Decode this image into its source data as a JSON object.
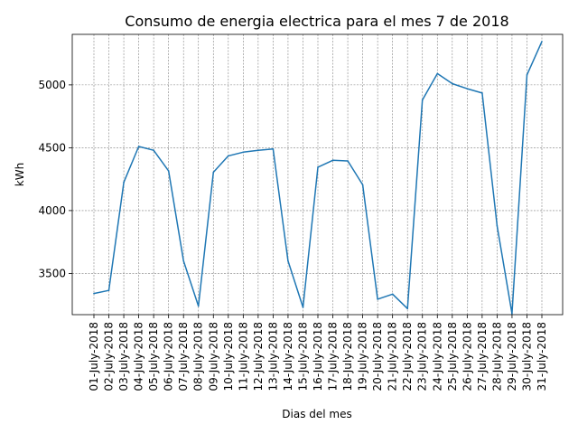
{
  "chart_data": {
    "type": "line",
    "title": "Consumo de energia electrica para el mes 7 de 2018",
    "xlabel": "Dias del mes",
    "ylabel": "kWh",
    "categories": [
      "01-July-2018",
      "02-July-2018",
      "03-July-2018",
      "04-July-2018",
      "05-July-2018",
      "06-July-2018",
      "07-July-2018",
      "08-July-2018",
      "09-July-2018",
      "10-July-2018",
      "11-July-2018",
      "12-July-2018",
      "13-July-2018",
      "14-July-2018",
      "15-July-2018",
      "16-July-2018",
      "17-July-2018",
      "18-July-2018",
      "19-July-2018",
      "20-July-2018",
      "21-July-2018",
      "22-July-2018",
      "23-July-2018",
      "24-July-2018",
      "25-July-2018",
      "26-July-2018",
      "27-July-2018",
      "28-July-2018",
      "29-July-2018",
      "30-July-2018",
      "31-July-2018"
    ],
    "series": [
      {
        "values": [
          3340,
          3365,
          4225,
          4510,
          4480,
          4315,
          3600,
          3240,
          4305,
          4435,
          4465,
          4480,
          4490,
          3600,
          3230,
          4345,
          4400,
          4395,
          4205,
          3295,
          3335,
          3220,
          4880,
          5090,
          5010,
          4970,
          4935,
          3880,
          3180,
          5080,
          5345
        ],
        "color": "#1f77b4"
      }
    ],
    "yticks": [
      3500,
      4000,
      4500,
      5000
    ],
    "ylim": [
      3172,
      5402
    ],
    "grid": true,
    "grid_color": "#808080",
    "legend": "none"
  }
}
